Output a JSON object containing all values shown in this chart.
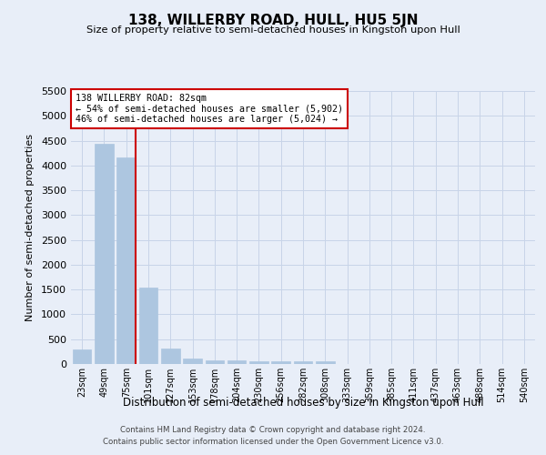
{
  "title": "138, WILLERBY ROAD, HULL, HU5 5JN",
  "subtitle": "Size of property relative to semi-detached houses in Kingston upon Hull",
  "xlabel": "Distribution of semi-detached houses by size in Kingston upon Hull",
  "ylabel": "Number of semi-detached properties",
  "footnote1": "Contains HM Land Registry data © Crown copyright and database right 2024.",
  "footnote2": "Contains public sector information licensed under the Open Government Licence v3.0.",
  "categories": [
    "23sqm",
    "49sqm",
    "75sqm",
    "101sqm",
    "127sqm",
    "153sqm",
    "178sqm",
    "204sqm",
    "230sqm",
    "256sqm",
    "282sqm",
    "308sqm",
    "333sqm",
    "359sqm",
    "385sqm",
    "411sqm",
    "437sqm",
    "463sqm",
    "488sqm",
    "514sqm",
    "540sqm"
  ],
  "values": [
    285,
    4430,
    4160,
    1540,
    320,
    115,
    80,
    65,
    60,
    55,
    55,
    60,
    0,
    0,
    0,
    0,
    0,
    0,
    0,
    0,
    0
  ],
  "bar_color": "#adc6e0",
  "bar_edge_color": "#adc6e0",
  "grid_color": "#c8d4e8",
  "background_color": "#e8eef8",
  "property_line_x": 2.43,
  "property_line_color": "#cc0000",
  "annotation_text": "138 WILLERBY ROAD: 82sqm\n← 54% of semi-detached houses are smaller (5,902)\n46% of semi-detached houses are larger (5,024) →",
  "annotation_box_color": "#ffffff",
  "annotation_box_edge_color": "#cc0000",
  "ylim": [
    0,
    5500
  ],
  "yticks": [
    0,
    500,
    1000,
    1500,
    2000,
    2500,
    3000,
    3500,
    4000,
    4500,
    5000,
    5500
  ]
}
